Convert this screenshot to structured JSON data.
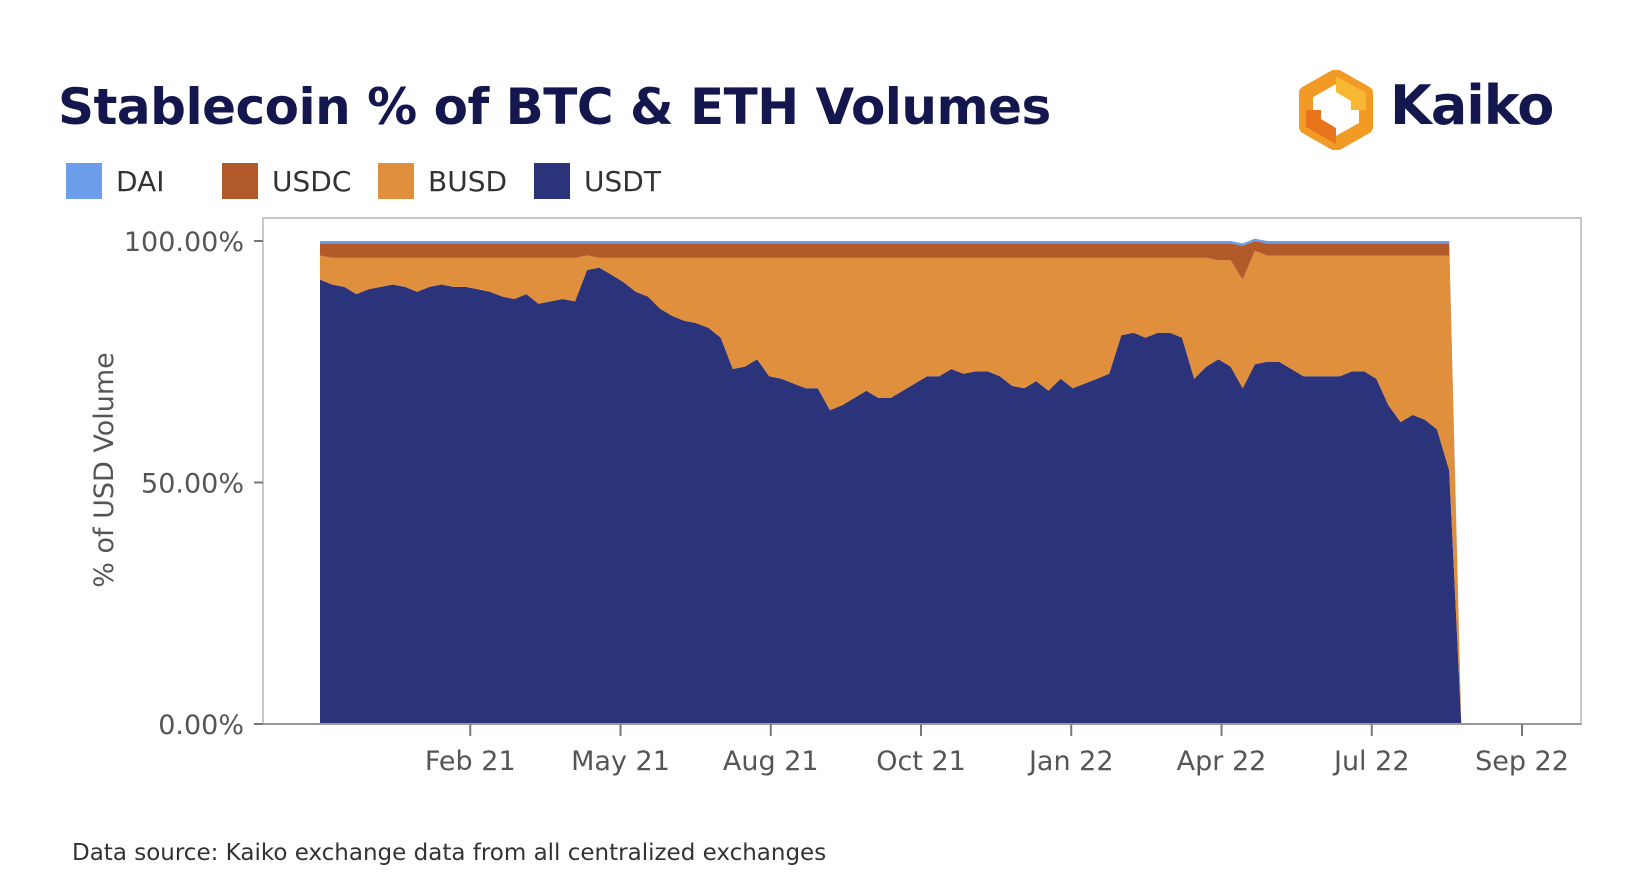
{
  "footer": {
    "source": "Data source: Kaiko exchange data from all centralized exchanges"
  },
  "logo": {
    "text": "Kaiko"
  },
  "chart_data": {
    "type": "area",
    "stacked": true,
    "title": "Stablecoin % of BTC & ETH Volumes",
    "ylabel": "% of USD Volume",
    "xlabel": "",
    "ylim": [
      0,
      100
    ],
    "yticks": [
      "0.00%",
      "50.00%",
      "100.00%"
    ],
    "ytick_values": [
      0,
      50,
      100
    ],
    "xticks": [
      "Feb 21",
      "May 21",
      "Aug 21",
      "Oct 21",
      "Jan 22",
      "Apr 22",
      "Jul 22",
      "Sep 22"
    ],
    "xtick_weeks": [
      13,
      26,
      39,
      52,
      65,
      78,
      91,
      104
    ],
    "legend_position": "top-left",
    "colors": {
      "DAI": "#6d9eeb",
      "USDC": "#b35a2a",
      "BUSD": "#e08f3c",
      "USDT": "#2b347b"
    },
    "weeks": 100,
    "series": [
      {
        "name": "USDT",
        "values": [
          92,
          91,
          90.5,
          89,
          90,
          90.5,
          91,
          90.5,
          89.5,
          90.5,
          91,
          90.5,
          90.5,
          90,
          89.5,
          88.5,
          88,
          89,
          87,
          87.5,
          88,
          87.5,
          94,
          94.5,
          93,
          91.5,
          89.5,
          88.5,
          86,
          84.5,
          83.5,
          83,
          82,
          80,
          73.5,
          74,
          75.5,
          72,
          71.5,
          70.5,
          69.5,
          69.5,
          65,
          66,
          67.5,
          69,
          67.5,
          67.5,
          69,
          70.5,
          72,
          72,
          73.5,
          72.5,
          73,
          73,
          72,
          70,
          69.5,
          71,
          69,
          71.5,
          69.5,
          70.5,
          71.5,
          72.5,
          80.5,
          81,
          80,
          81,
          81,
          80,
          71.5,
          74,
          75.5,
          74,
          69.5,
          74.5,
          75,
          75,
          73.5,
          72,
          72,
          72,
          72,
          73,
          73,
          71.5,
          66,
          62.5,
          64,
          63,
          61,
          52.5
        ]
      },
      {
        "name": "BUSD",
        "values": [
          5,
          5.5,
          6,
          7.5,
          6.5,
          6,
          5.5,
          6,
          7,
          6,
          5.5,
          6,
          6,
          6.5,
          7,
          8,
          8.5,
          7.5,
          9.5,
          9,
          8.5,
          9,
          3,
          2,
          3.5,
          5,
          7,
          8,
          10.5,
          12,
          13,
          13.5,
          14.5,
          16.5,
          23,
          22.5,
          21,
          24.5,
          25,
          26,
          27,
          27,
          31.5,
          30.5,
          29,
          27.5,
          29,
          29,
          27.5,
          26,
          24.5,
          24.5,
          23,
          24,
          23.5,
          23.5,
          24.5,
          26.5,
          27,
          25.5,
          27.5,
          25,
          27,
          26,
          25,
          24,
          16,
          15.5,
          16.5,
          15.5,
          15.5,
          16.5,
          25,
          22.5,
          20.5,
          22,
          22.5,
          23.5,
          22,
          22,
          23.5,
          25,
          25,
          25,
          25,
          24,
          24,
          25.5,
          31,
          34.5,
          33,
          34,
          36,
          44.5
        ]
      },
      {
        "name": "USDC",
        "values": [
          2.5,
          3,
          3,
          3,
          3,
          3,
          3,
          3,
          3,
          3,
          3,
          3,
          3,
          3,
          3,
          3,
          3,
          3,
          3,
          3,
          3,
          3,
          2.5,
          3,
          3,
          3,
          3,
          3,
          3,
          3,
          3,
          3,
          3,
          3,
          3,
          3,
          3,
          3,
          3,
          3,
          3,
          3,
          3,
          3,
          3,
          3,
          3,
          3,
          3,
          3,
          3,
          3,
          3,
          3,
          3,
          3,
          3,
          3,
          3,
          3,
          3,
          3,
          3,
          3,
          3,
          3,
          3,
          3,
          3,
          3,
          3,
          3,
          3,
          3,
          3.5,
          3.5,
          7,
          2,
          2.5,
          2.5,
          2.5,
          2.5,
          2.5,
          2.5,
          2.5,
          2.5,
          2.5,
          2.5,
          2.5,
          2.5,
          2.5,
          2.5,
          2.5,
          2.5
        ]
      },
      {
        "name": "DAI",
        "values": [
          0.5,
          0.5,
          0.5,
          0.5,
          0.5,
          0.5,
          0.5,
          0.5,
          0.5,
          0.5,
          0.5,
          0.5,
          0.5,
          0.5,
          0.5,
          0.5,
          0.5,
          0.5,
          0.5,
          0.5,
          0.5,
          0.5,
          0.5,
          0.5,
          0.5,
          0.5,
          0.5,
          0.5,
          0.5,
          0.5,
          0.5,
          0.5,
          0.5,
          0.5,
          0.5,
          0.5,
          0.5,
          0.5,
          0.5,
          0.5,
          0.5,
          0.5,
          0.5,
          0.5,
          0.5,
          0.5,
          0.5,
          0.5,
          0.5,
          0.5,
          0.5,
          0.5,
          0.5,
          0.5,
          0.5,
          0.5,
          0.5,
          0.5,
          0.5,
          0.5,
          0.5,
          0.5,
          0.5,
          0.5,
          0.5,
          0.5,
          0.5,
          0.5,
          0.5,
          0.5,
          0.5,
          0.5,
          0.5,
          0.5,
          0.5,
          0.5,
          0.5,
          0.5,
          0.5,
          0.5,
          0.5,
          0.5,
          0.5,
          0.5,
          0.5,
          0.5,
          0.5,
          0.5,
          0.5,
          0.5,
          0.5,
          0.5,
          0.5,
          0.5
        ]
      }
    ],
    "legend": [
      "DAI",
      "USDC",
      "BUSD",
      "USDT"
    ]
  }
}
